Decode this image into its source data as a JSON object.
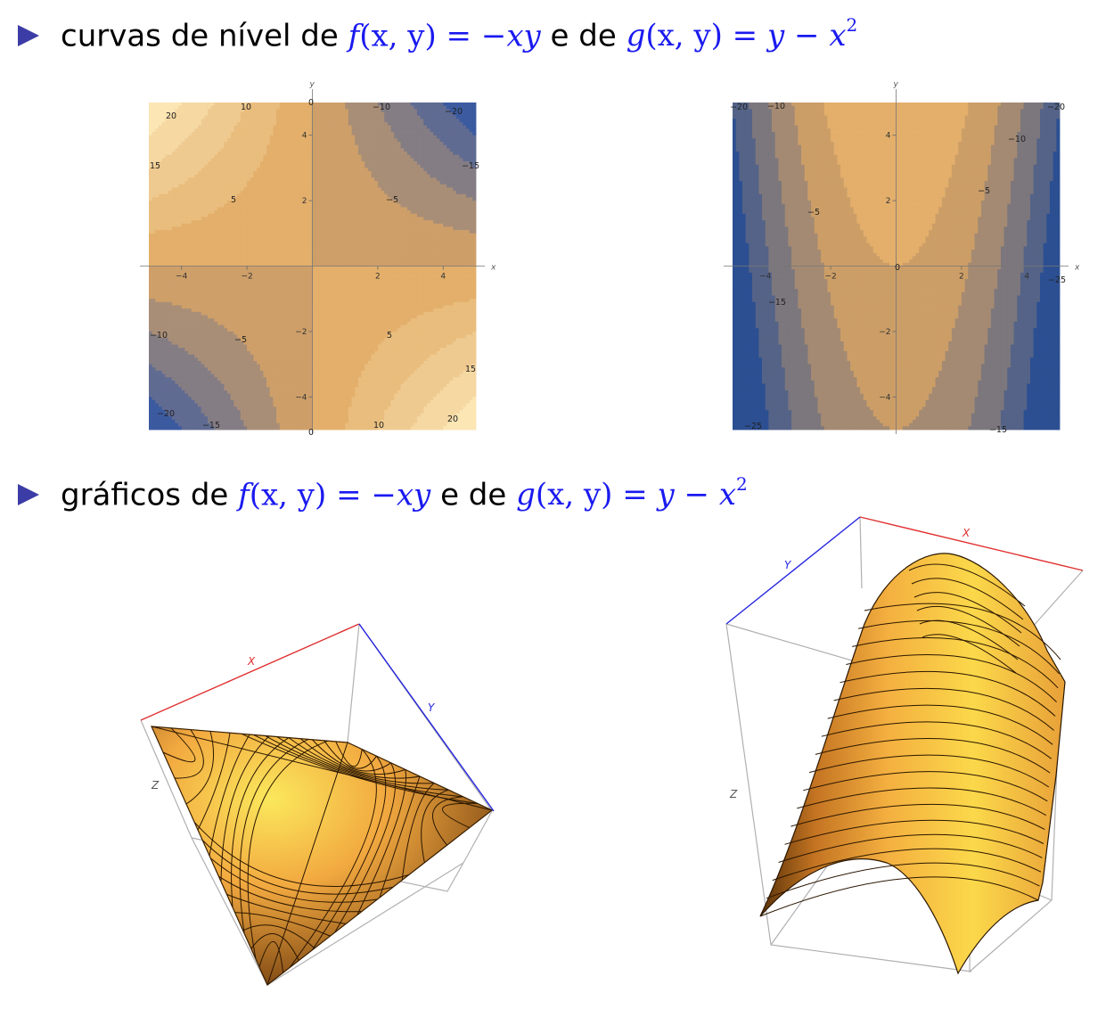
{
  "bullets": [
    {
      "lead": "curvas de nível de",
      "f": "f",
      "fargs": "(x, y)",
      "feq": " = −",
      "fexpr": "xy",
      "conn": "e de",
      "g": "g",
      "gargs": "(x, y)",
      "geq": " = ",
      "gexpr_y": "y",
      "gminus": " − ",
      "gexpr_x": "x",
      "gexp": "2"
    },
    {
      "lead": "gráficos de",
      "f": "f",
      "fargs": "(x, y)",
      "feq": " = −",
      "fexpr": "xy",
      "conn": "e de",
      "g": "g",
      "gargs": "(x, y)",
      "geq": " = ",
      "gexpr_y": "y",
      "gminus": " − ",
      "gexpr_x": "x",
      "gexp": "2"
    }
  ],
  "chart_data": [
    {
      "type": "heatmap",
      "subtype": "contour",
      "function": "f(x,y) = -xy",
      "xlabel": "x",
      "ylabel": "y",
      "xlim": [
        -5,
        5
      ],
      "ylim": [
        -5,
        5
      ],
      "x_ticks": [
        -4,
        -2,
        2,
        4
      ],
      "y_ticks": [
        -4,
        -2,
        2,
        4
      ],
      "contour_labels": [
        "20",
        "10",
        "0",
        "-10",
        "-20",
        "15",
        "-15",
        "5",
        "-5",
        "-10",
        "-5",
        "5",
        "15",
        "-20",
        "-15",
        "10",
        "20",
        "0"
      ],
      "colors": {
        "low": "#3b5aa0",
        "mid": "#e0a862",
        "high": "#fbe6b4"
      }
    },
    {
      "type": "heatmap",
      "subtype": "contour",
      "function": "g(x,y) = y - x^2",
      "xlabel": "x",
      "ylabel": "y",
      "xlim": [
        -5,
        5
      ],
      "ylim": [
        -5,
        5
      ],
      "x_ticks": [
        -4,
        -2,
        2,
        4
      ],
      "y_ticks": [
        -4,
        -2,
        2,
        4
      ],
      "contour_labels": [
        "-20",
        "-10",
        "-20",
        "-10",
        "-5",
        "-5",
        "0",
        "-15",
        "-25",
        "-25",
        "-15"
      ],
      "colors": {
        "low": "#2c4f92",
        "mid": "#e0a862",
        "high": "#fbe6b4"
      }
    },
    {
      "type": "area",
      "subtype": "surface3d",
      "function": "f(x,y) = -xy",
      "axis_labels": {
        "x": "X",
        "y": "Y",
        "z": "Z"
      },
      "colors": {
        "x_axis": "#e03030",
        "y_axis": "#2424e0",
        "surface": "#f0b040"
      }
    },
    {
      "type": "area",
      "subtype": "surface3d",
      "function": "g(x,y) = y - x^2",
      "axis_labels": {
        "x": "X",
        "y": "Y",
        "z": "Z"
      },
      "colors": {
        "x_axis": "#e03030",
        "y_axis": "#2424e0",
        "surface": "#f0b040"
      }
    }
  ]
}
